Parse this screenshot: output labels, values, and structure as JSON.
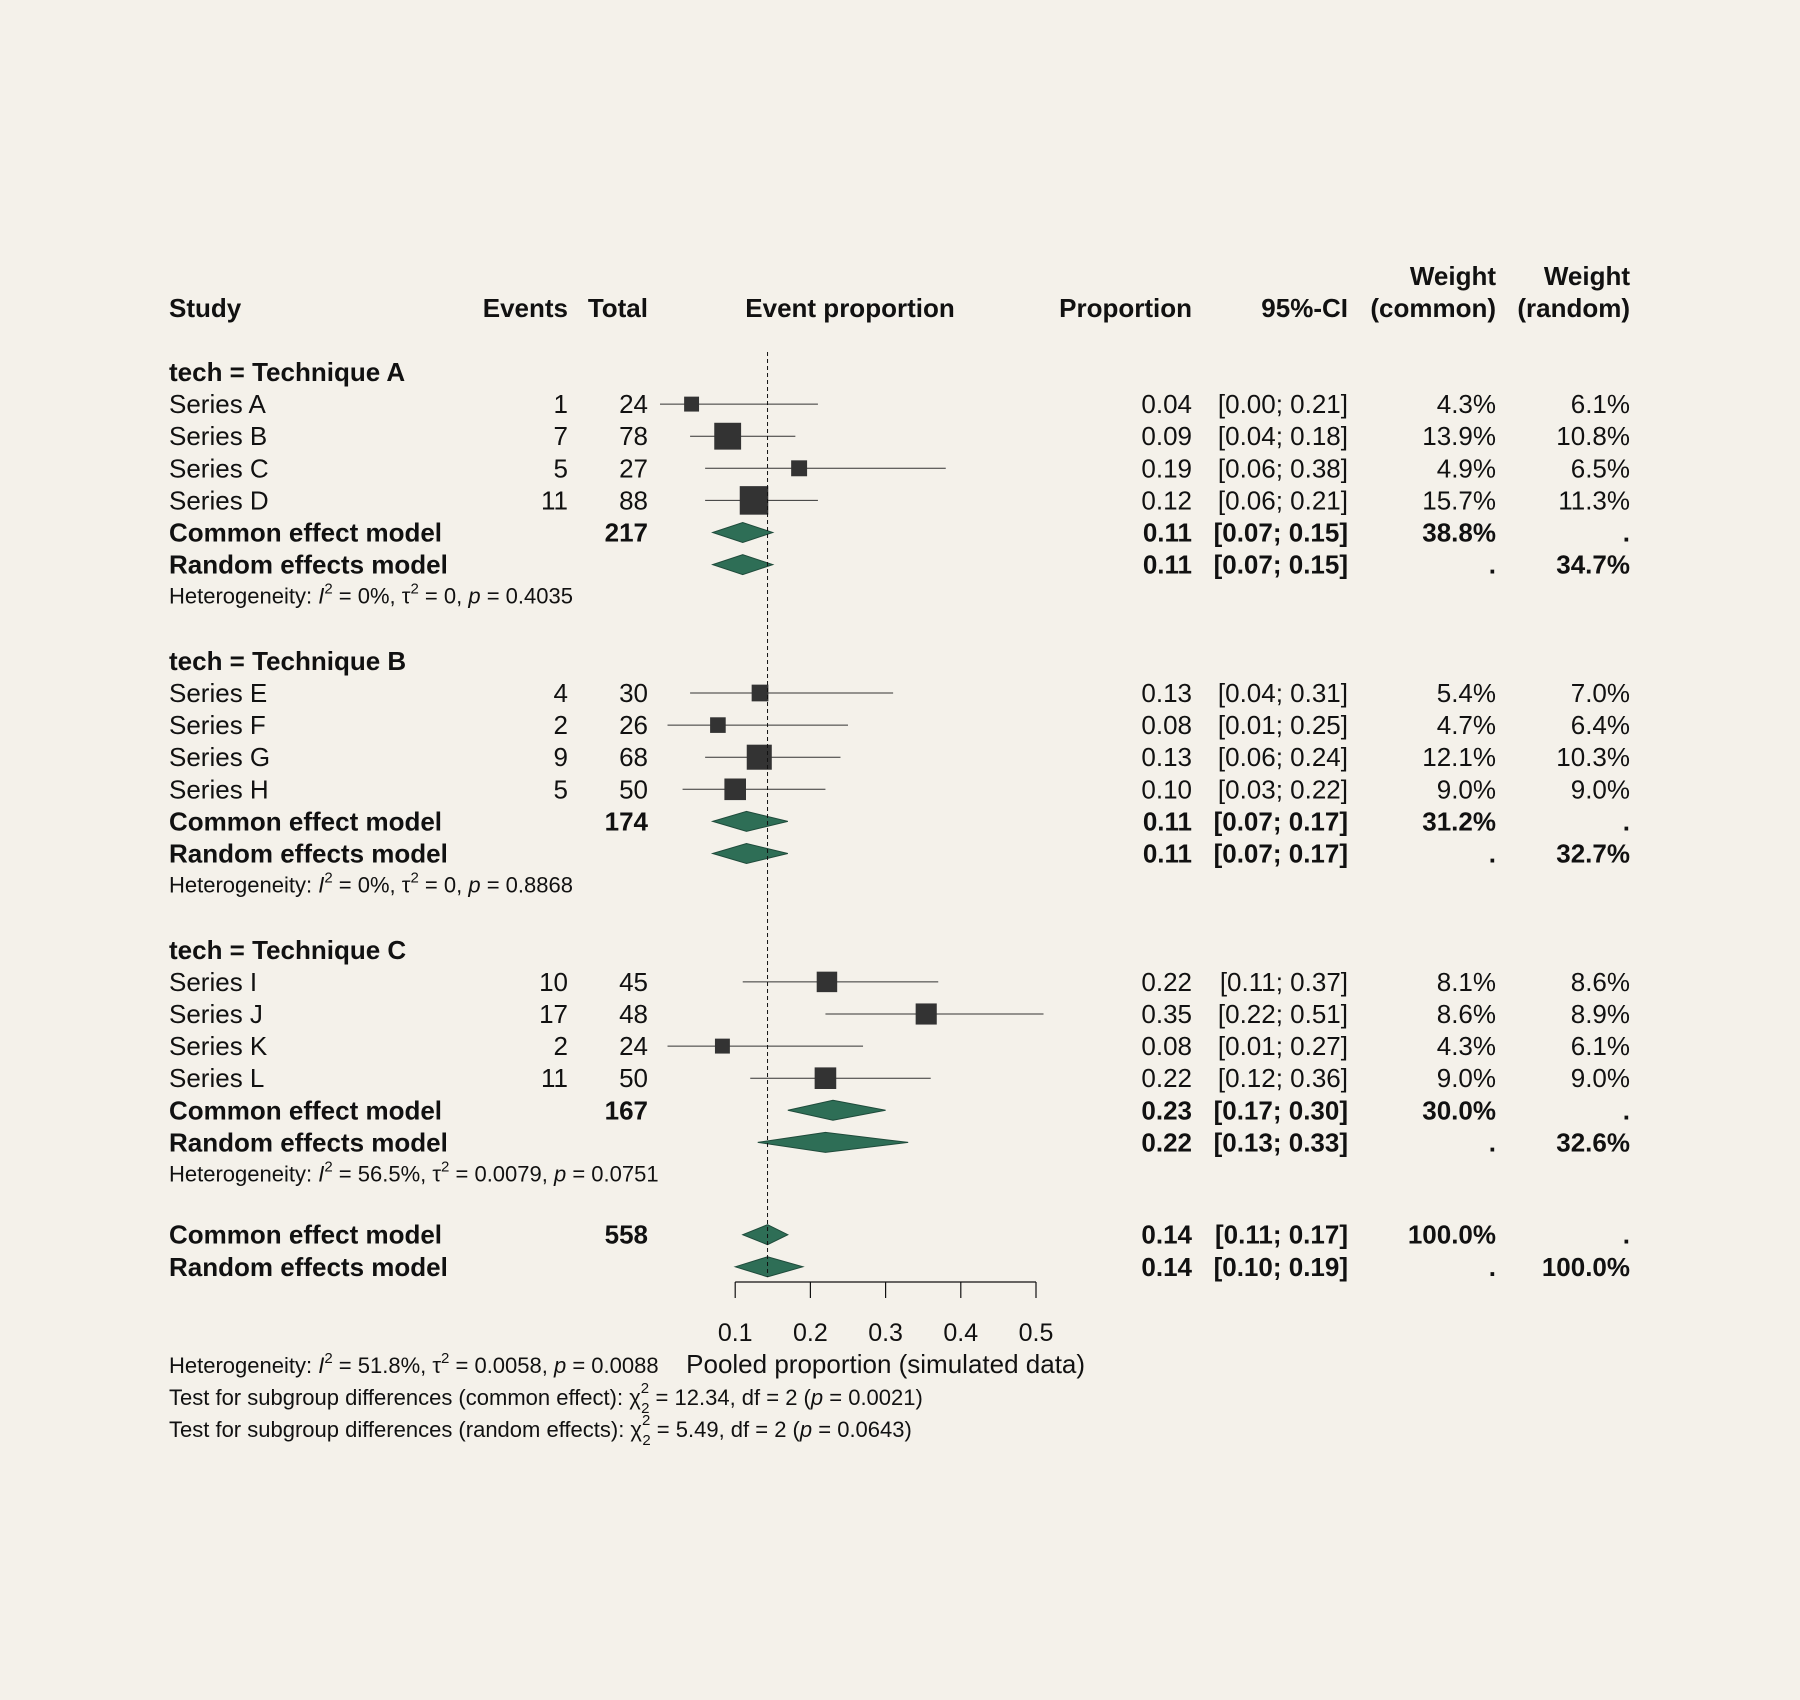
{
  "headers": {
    "study": "Study",
    "events": "Events",
    "total": "Total",
    "effect": "Event proportion",
    "proportion": "Proportion",
    "ci": "95%-CI",
    "weight_common": [
      "Weight",
      "(common)"
    ],
    "weight_random": [
      "Weight",
      "(random)"
    ]
  },
  "colors": {
    "background": "#f4f1ea",
    "square": "#333333",
    "diamond": "#2e6e56"
  },
  "chart_data": {
    "type": "forest",
    "xlabel": "Pooled proportion (simulated data)",
    "x_ticks": [
      "0.1",
      "0.2",
      "0.3",
      "0.4",
      "0.5"
    ],
    "x_tick_values": [
      0.1,
      0.2,
      0.3,
      0.4,
      0.5
    ],
    "xlim": [
      0.0,
      0.5
    ],
    "reference_line": 0.143,
    "subgroups": [
      {
        "label": "tech = Technique A",
        "studies": [
          {
            "name": "Series A",
            "events": "1",
            "total": "24",
            "est": 0.042,
            "lo": 0.0,
            "hi": 0.21,
            "prop": "0.04",
            "ci": "[0.00; 0.21]",
            "wc": "4.3%",
            "wr": "6.1%",
            "wnum": 4.3
          },
          {
            "name": "Series B",
            "events": "7",
            "total": "78",
            "est": 0.09,
            "lo": 0.04,
            "hi": 0.18,
            "prop": "0.09",
            "ci": "[0.04; 0.18]",
            "wc": "13.9%",
            "wr": "10.8%",
            "wnum": 13.9
          },
          {
            "name": "Series C",
            "events": "5",
            "total": "27",
            "est": 0.185,
            "lo": 0.06,
            "hi": 0.38,
            "prop": "0.19",
            "ci": "[0.06; 0.38]",
            "wc": "4.9%",
            "wr": "6.5%",
            "wnum": 4.9
          },
          {
            "name": "Series D",
            "events": "11",
            "total": "88",
            "est": 0.125,
            "lo": 0.06,
            "hi": 0.21,
            "prop": "0.12",
            "ci": "[0.06; 0.21]",
            "wc": "15.7%",
            "wr": "11.3%",
            "wnum": 15.7
          }
        ],
        "common": {
          "label": "Common effect model",
          "total": "217",
          "est": 0.11,
          "lo": 0.07,
          "hi": 0.15,
          "prop": "0.11",
          "ci": "[0.07; 0.15]",
          "wc": "38.8%",
          "wr": "."
        },
        "random": {
          "label": "Random effects model",
          "total": "",
          "est": 0.11,
          "lo": 0.07,
          "hi": 0.15,
          "prop": "0.11",
          "ci": "[0.07; 0.15]",
          "wc": ".",
          "wr": "34.7%"
        },
        "het": {
          "I2": "0%",
          "tau2": "0",
          "p": "0.4035"
        }
      },
      {
        "label": "tech = Technique B",
        "studies": [
          {
            "name": "Series E",
            "events": "4",
            "total": "30",
            "est": 0.133,
            "lo": 0.04,
            "hi": 0.31,
            "prop": "0.13",
            "ci": "[0.04; 0.31]",
            "wc": "5.4%",
            "wr": "7.0%",
            "wnum": 5.4
          },
          {
            "name": "Series F",
            "events": "2",
            "total": "26",
            "est": 0.077,
            "lo": 0.01,
            "hi": 0.25,
            "prop": "0.08",
            "ci": "[0.01; 0.25]",
            "wc": "4.7%",
            "wr": "6.4%",
            "wnum": 4.7
          },
          {
            "name": "Series G",
            "events": "9",
            "total": "68",
            "est": 0.132,
            "lo": 0.06,
            "hi": 0.24,
            "prop": "0.13",
            "ci": "[0.06; 0.24]",
            "wc": "12.1%",
            "wr": "10.3%",
            "wnum": 12.1
          },
          {
            "name": "Series H",
            "events": "5",
            "total": "50",
            "est": 0.1,
            "lo": 0.03,
            "hi": 0.22,
            "prop": "0.10",
            "ci": "[0.03; 0.22]",
            "wc": "9.0%",
            "wr": "9.0%",
            "wnum": 9.0
          }
        ],
        "common": {
          "label": "Common effect model",
          "total": "174",
          "est": 0.115,
          "lo": 0.07,
          "hi": 0.17,
          "prop": "0.11",
          "ci": "[0.07; 0.17]",
          "wc": "31.2%",
          "wr": "."
        },
        "random": {
          "label": "Random effects model",
          "total": "",
          "est": 0.115,
          "lo": 0.07,
          "hi": 0.17,
          "prop": "0.11",
          "ci": "[0.07; 0.17]",
          "wc": ".",
          "wr": "32.7%"
        },
        "het": {
          "I2": "0%",
          "tau2": "0",
          "p": "0.8868"
        }
      },
      {
        "label": "tech = Technique C",
        "studies": [
          {
            "name": "Series I",
            "events": "10",
            "total": "45",
            "est": 0.222,
            "lo": 0.11,
            "hi": 0.37,
            "prop": "0.22",
            "ci": "[0.11; 0.37]",
            "wc": "8.1%",
            "wr": "8.6%",
            "wnum": 8.1
          },
          {
            "name": "Series J",
            "events": "17",
            "total": "48",
            "est": 0.354,
            "lo": 0.22,
            "hi": 0.51,
            "prop": "0.35",
            "ci": "[0.22; 0.51]",
            "wc": "8.6%",
            "wr": "8.9%",
            "wnum": 8.6
          },
          {
            "name": "Series K",
            "events": "2",
            "total": "24",
            "est": 0.083,
            "lo": 0.01,
            "hi": 0.27,
            "prop": "0.08",
            "ci": "[0.01; 0.27]",
            "wc": "4.3%",
            "wr": "6.1%",
            "wnum": 4.3
          },
          {
            "name": "Series L",
            "events": "11",
            "total": "50",
            "est": 0.22,
            "lo": 0.12,
            "hi": 0.36,
            "prop": "0.22",
            "ci": "[0.12; 0.36]",
            "wc": "9.0%",
            "wr": "9.0%",
            "wnum": 9.0
          }
        ],
        "common": {
          "label": "Common effect model",
          "total": "167",
          "est": 0.23,
          "lo": 0.17,
          "hi": 0.3,
          "prop": "0.23",
          "ci": "[0.17; 0.30]",
          "wc": "30.0%",
          "wr": "."
        },
        "random": {
          "label": "Random effects model",
          "total": "",
          "est": 0.22,
          "lo": 0.13,
          "hi": 0.33,
          "prop": "0.22",
          "ci": "[0.13; 0.33]",
          "wc": ".",
          "wr": "32.6%"
        },
        "het": {
          "I2": "56.5%",
          "tau2": "0.0079",
          "p": "0.0751"
        }
      }
    ],
    "overall": {
      "common": {
        "label": "Common effect model",
        "total": "558",
        "est": 0.143,
        "lo": 0.11,
        "hi": 0.17,
        "prop": "0.14",
        "ci": "[0.11; 0.17]",
        "wc": "100.0%",
        "wr": "."
      },
      "random": {
        "label": "Random effects model",
        "total": "",
        "est": 0.143,
        "lo": 0.1,
        "hi": 0.19,
        "prop": "0.14",
        "ci": "[0.10; 0.19]",
        "wc": ".",
        "wr": "100.0%"
      },
      "het": {
        "I2": "51.8%",
        "tau2": "0.0058",
        "p": "0.0088"
      }
    },
    "subgroup_tests": [
      {
        "label": "Test for subgroup differences (common effect):",
        "chi2": "12.34",
        "df": "2",
        "p": "0.0021"
      },
      {
        "label": "Test for subgroup differences (random effects):",
        "chi2": "5.49",
        "df": "2",
        "p": "0.0643"
      }
    ]
  }
}
